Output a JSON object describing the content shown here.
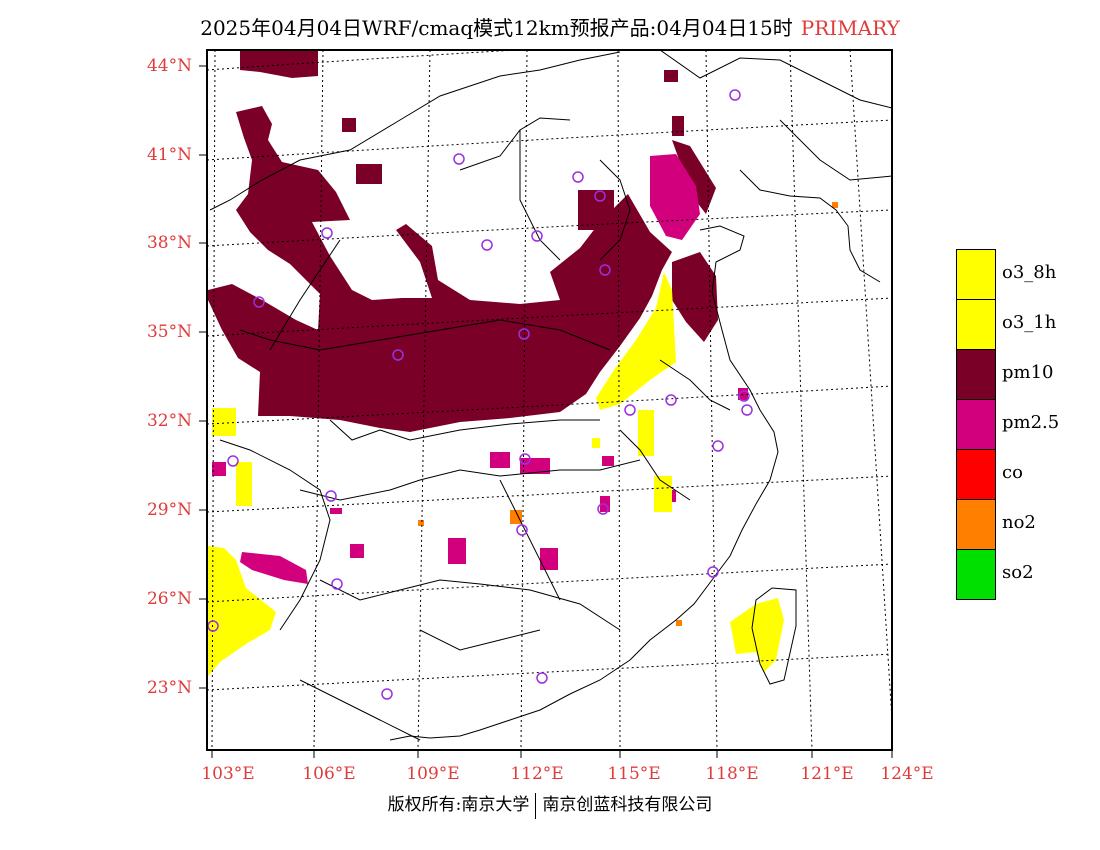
{
  "title": {
    "main": "2025年04月04日WRF/cmaq模式12km预报产品:04月04日15时",
    "tag": "PRIMARY"
  },
  "axes": {
    "lat_labels": [
      "44°N",
      "41°N",
      "38°N",
      "35°N",
      "32°N",
      "29°N",
      "26°N",
      "23°N"
    ],
    "lon_labels": [
      "103°E",
      "106°E",
      "109°E",
      "112°E",
      "115°E",
      "118°E",
      "121°E",
      "124°E"
    ]
  },
  "legend": [
    {
      "label": "o3_8h",
      "color": "#ffff00"
    },
    {
      "label": "o3_1h",
      "color": "#ffff00"
    },
    {
      "label": "pm10",
      "color": "#7a0028"
    },
    {
      "label": "pm2.5",
      "color": "#d3007e"
    },
    {
      "label": "co",
      "color": "#ff0000"
    },
    {
      "label": "no2",
      "color": "#ff7f00"
    },
    {
      "label": "so2",
      "color": "#00e000"
    }
  ],
  "colors": {
    "pm10": "#7a0028",
    "pm25": "#d3007e",
    "o3": "#ffff00",
    "no2": "#ff7f00",
    "station": "#9a30e0",
    "accent": "#e03a3a"
  },
  "footer": {
    "left": "版权所有:南京大学",
    "right": "南京创蓝科技有限公司"
  }
}
